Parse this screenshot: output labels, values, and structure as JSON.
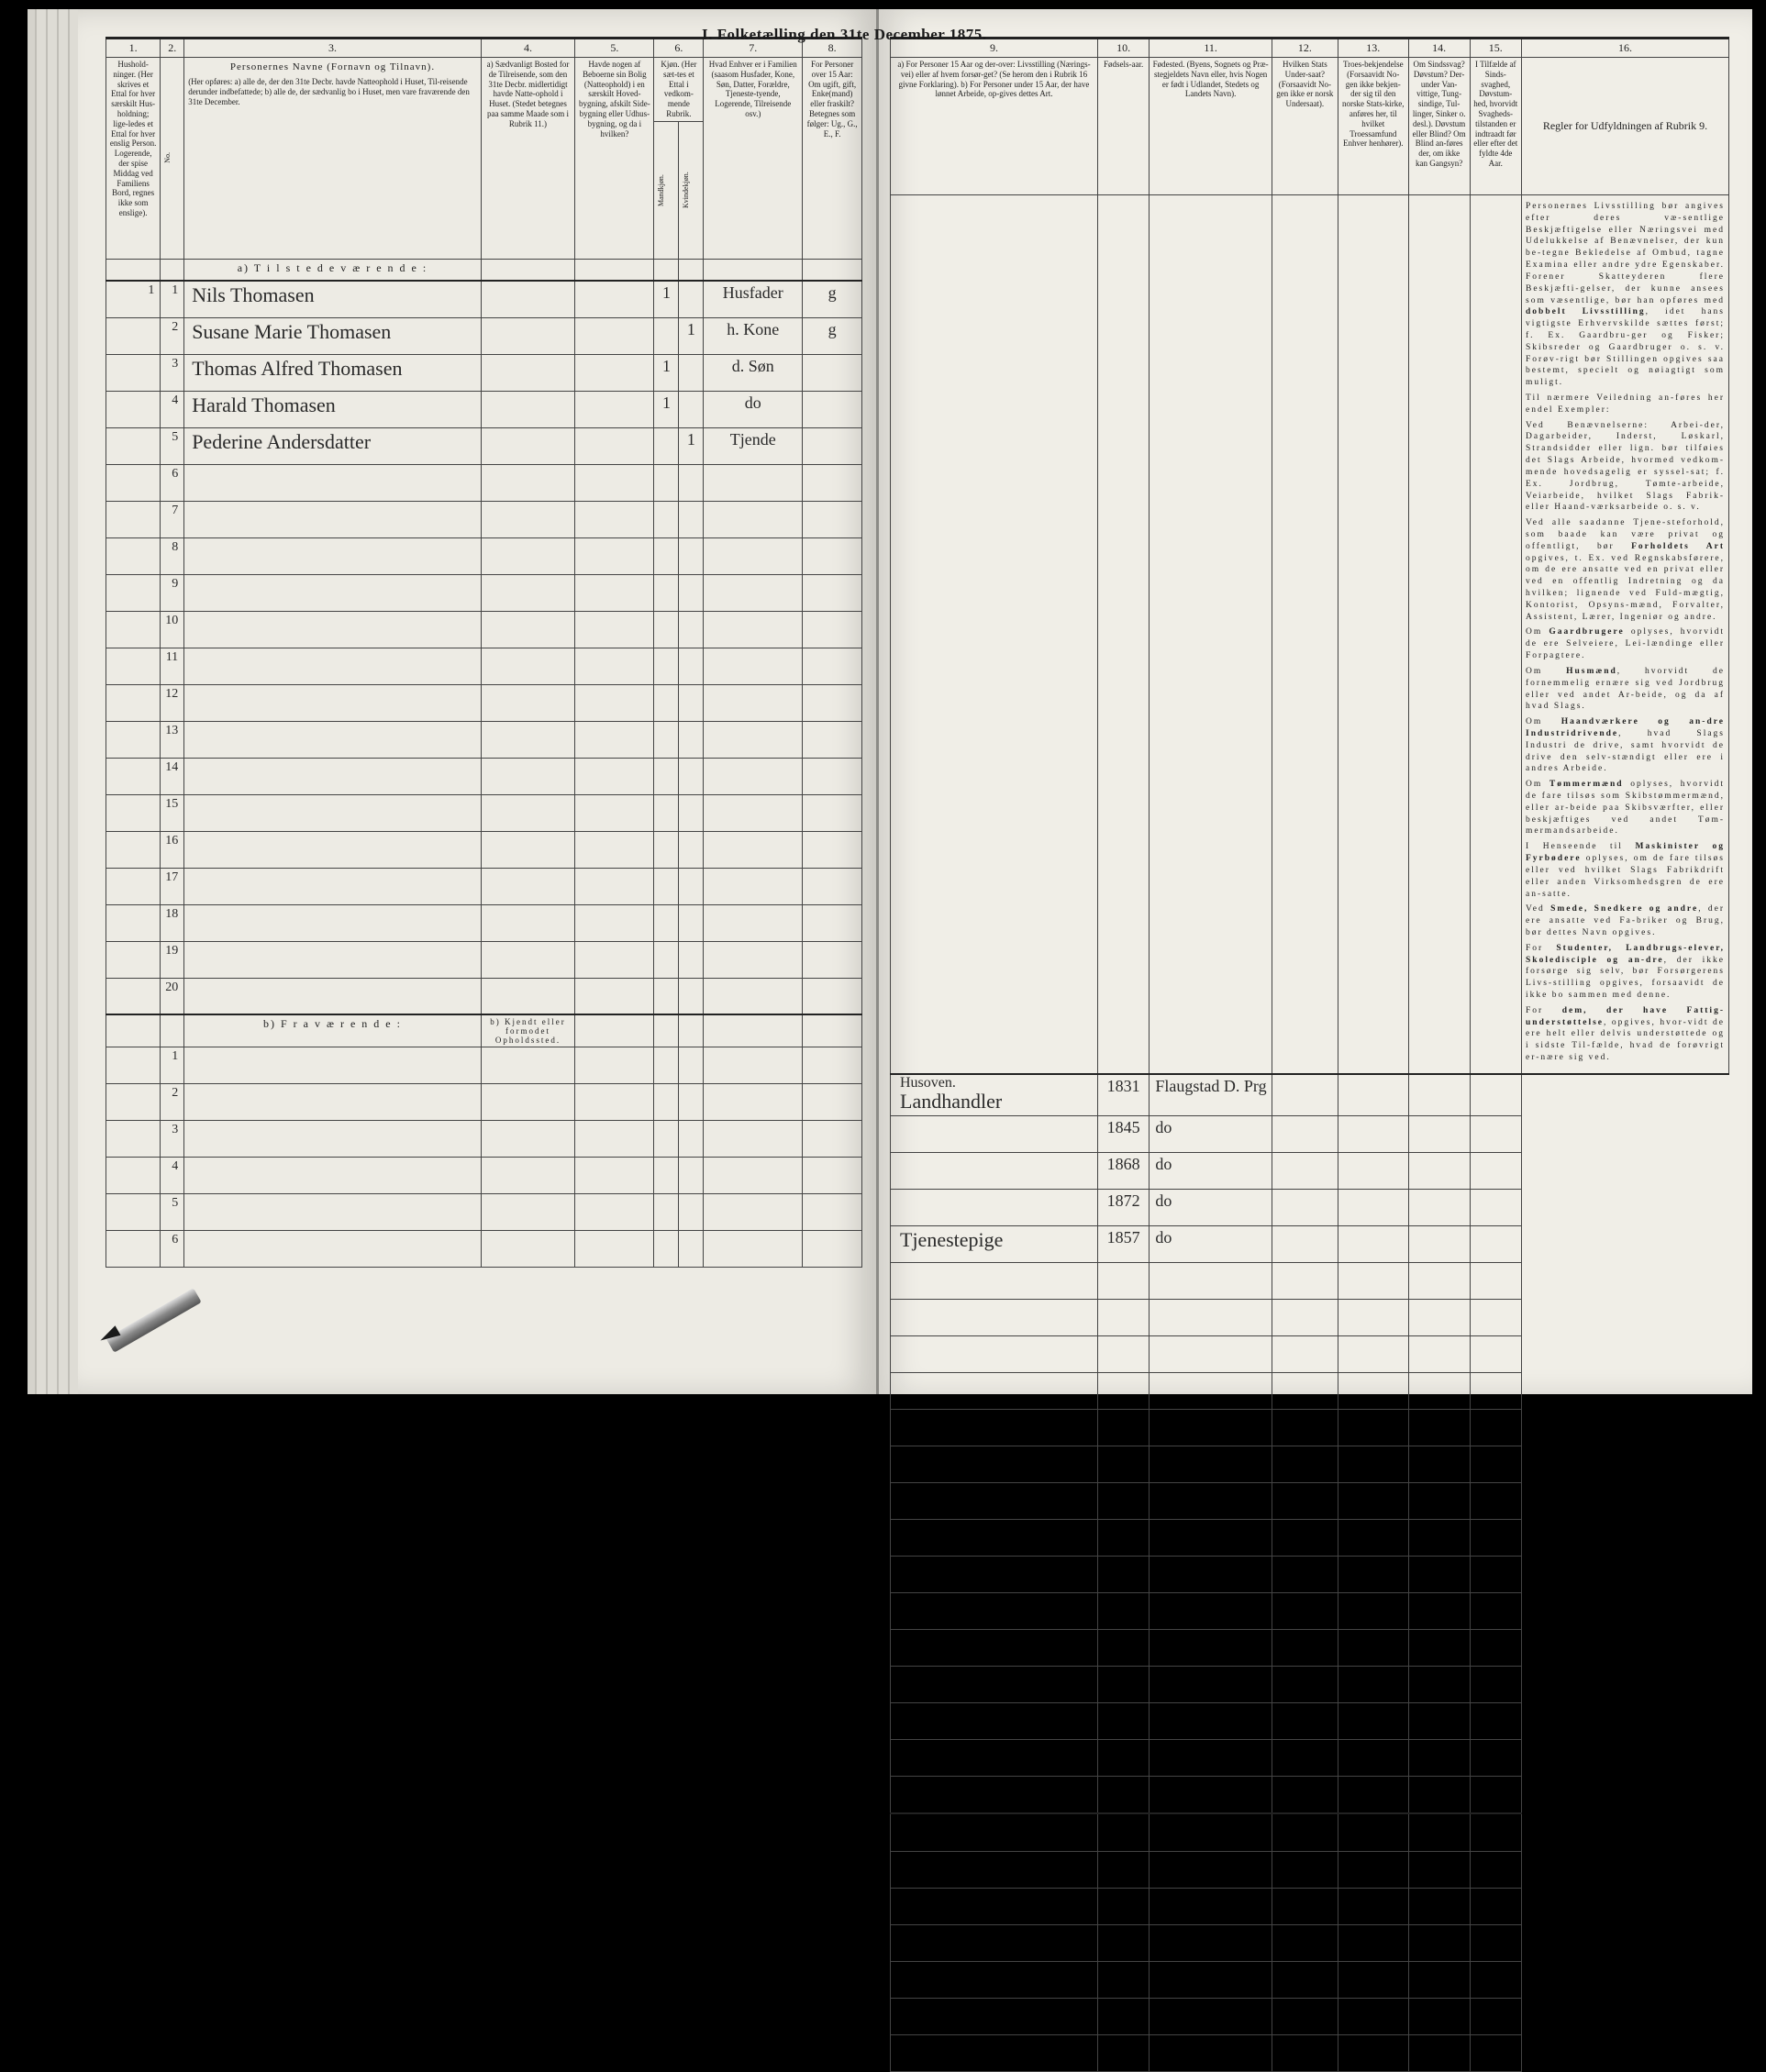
{
  "title": "I.  Folketælling den 31te December 1875.",
  "columns_left": {
    "c1": "1.",
    "c2": "2.",
    "c3": "3.",
    "c4": "4.",
    "c5": "5.",
    "c6": "6.",
    "c7": "7.",
    "c8": "8."
  },
  "columns_right": {
    "c9": "9.",
    "c10": "10.",
    "c11": "11.",
    "c12": "12.",
    "c13": "13.",
    "c14": "14.",
    "c15": "15.",
    "c16": "16."
  },
  "headers_left": {
    "h1": "Hushold-ninger.\n(Her skrives et Ettal for hver særskilt Hus-holdning; lige-ledes et Ettal for hver enslig Person.\nLogerende, der spise Middag ved Familiens Bord, regnes ikke som enslige).",
    "h2": "No.",
    "h3_title": "Personernes Navne (Fornavn og Tilnavn).",
    "h3_body": "(Her opføres:\na) alle de, der den 31te Decbr. havde Natteophold i Huset, Til-reisende derunder indbefattede;\nb) alle de, der sædvanlig bo i Huset, men vare fraværende den 31te December.",
    "h4": "a) Sædvanligt Bosted for de Tilreisende, som den 31te Decbr. midlertidigt havde Natte-ophold i Huset.\n(Stedet betegnes paa samme Maade som i Rubrik 11.)",
    "h5": "Havde nogen af Beboerne sin Bolig (Natteophold) i en særskilt Hoved-bygning, afskilt Side-bygning eller Udhus-bygning, og da i hvilken?",
    "h6": "Kjøn.\n(Her sæt-tes et Ettal i vedkom-mende Rubrik.",
    "h6a": "Mandkjøn.",
    "h6b": "Kvindekjøn.",
    "h7": "Hvad Enhver er i Familien\n(saasom Husfader, Kone, Søn, Datter, Forældre, Tjeneste-tyende, Logerende, Tilreisende osv.)",
    "h8": "For Personer over 15 Aar: Om ugift, gift, Enke(mand) eller fraskilt?\nBetegnes som følger:\nUg., G., E., F."
  },
  "headers_right": {
    "h9": "a) For Personer 15 Aar og der-over: Livsstilling (Nærings-vei) eller af hvem forsør-get? (Se herom den i Rubrik 16 givne Forklaring).\nb) For Personer under 15 Aar, der have lønnet Arbeide, op-gives dettes Art.",
    "h10": "Fødsels-aar.",
    "h11": "Fødested.\n(Byens, Sognets og Præ-stegjeldets Navn eller, hvis Nogen er født i Udlandet, Stedets og Landets Navn).",
    "h12": "Hvilken Stats Under-saat?\n(Forsaavidt No-gen ikke er norsk Undersaat).",
    "h13": "Troes-bekjendelse\n(Forsaavidt No-gen ikke bekjen-der sig til den norske Stats-kirke, anføres her, til hvilket Troessamfund Enhver henhører).",
    "h14": "Om Sindssvag?\nDøvstum? Der-under Van-vittige, Tung-sindige, Tul-linger, Sinker o. desl.). Døvstum eller Blind? Om Blind an-føres der, om ikke kan Gangsyn?",
    "h15": "I Tilfælde af Sinds-svaghed, Døvstum-hed, hvorvidt Svagheds-tilstanden er indtraadt før eller efter det fyldte 4de Aar.",
    "h16_title": "Regler for Udfyldningen af Rubrik 9."
  },
  "section_a": "a)  T i l s t e d e v æ r e n d e :",
  "section_b": "b)  F r a v æ r e n d e :",
  "absent_col4": "b) Kjendt eller formodet Opholdssted.",
  "rows": [
    {
      "no": "1",
      "name": "Nils Thomasen",
      "c6a": "1",
      "c6b": "",
      "rel": "Husfader",
      "civ": "g",
      "occ": "Landhandler",
      "occ2": "Husoven.",
      "year": "1831",
      "place": "Flaugstad D. Prg"
    },
    {
      "no": "2",
      "name": "Susane Marie Thomasen",
      "c6a": "",
      "c6b": "1",
      "rel": "h. Kone",
      "civ": "g",
      "occ": "",
      "occ2": "",
      "year": "1845",
      "place": "do"
    },
    {
      "no": "3",
      "name": "Thomas Alfred Thomasen",
      "c6a": "1",
      "c6b": "",
      "rel": "d. Søn",
      "civ": "",
      "occ": "",
      "occ2": "",
      "year": "1868",
      "place": "do"
    },
    {
      "no": "4",
      "name": "Harald Thomasen",
      "c6a": "1",
      "c6b": "",
      "rel": "do",
      "civ": "",
      "occ": "",
      "occ2": "",
      "year": "1872",
      "place": "do"
    },
    {
      "no": "5",
      "name": "Pederine Andersdatter",
      "c6a": "",
      "c6b": "1",
      "rel": "Tjende",
      "civ": "",
      "occ": "Tjenestepige",
      "occ2": "",
      "year": "1857",
      "place": "do"
    }
  ],
  "empty_rows_a": [
    "6",
    "7",
    "8",
    "9",
    "10",
    "11",
    "12",
    "13",
    "14",
    "15",
    "16",
    "17",
    "18",
    "19",
    "20"
  ],
  "empty_rows_b": [
    "1",
    "2",
    "3",
    "4",
    "5",
    "6"
  ],
  "instructions_title": "",
  "instructions": [
    "Personernes Livsstilling bør angives efter deres væ-sentlige Beskjæftigelse eller Næringsvei med Udelukkelse af Benævnelser, der kun be-tegne Bekledelse af Ombud, tagne Examina eller andre ydre Egenskaber. Forener Skatteyderen flere Beskjæfti-gelser, der kunne ansees som væsentlige, bør han opføres med **dobbelt Livsstilling**, idet hans vigtigste Erhvervskilde sættes først; f. Ex. Gaardbru-ger og Fisker; Skibsreder og Gaardbruger o. s. v. Forøv-rigt bør Stillingen opgives saa bestemt, specielt og nøiagtigt som muligt.",
    "Til nærmere Veiledning an-føres her endel Exempler:",
    "Ved Benævnelserne: Arbei-der, Dagarbeider, Inderst, Løskarl, Strandsidder eller lign. bør tilføies det Slags Arbeide, hvormed vedkom-mende hovedsagelig er syssel-sat; f. Ex. Jordbrug, Tømte-arbeide, Veiarbeide, hvilket Slags Fabrik- eller Haand-værksarbeide o. s. v.",
    "Ved alle saadanne Tjene-steforhold, som baade kan være privat og offentligt, bør **Forholdets Art** opgives, t. Ex. ved Regnskabsførere, om de ere ansatte ved en privat eller ved en offentlig Indretning og da hvilken; lignende ved Fuld-mægtig, Kontorist, Opsyns-mænd, Forvalter, Assistent, Lærer, Ingeniør og andre.",
    "Om **Gaardbrugere** oplyses, hvorvidt de ere Selveiere, Lei-lændinge eller Forpagtere.",
    "Om **Husmænd**, hvorvidt de fornemmelig ernære sig ved Jordbrug eller ved andet Ar-beide, og da af hvad Slags.",
    "Om **Haandværkere og an-dre Industridrivende**, hvad Slags Industri de drive, samt hvorvidt de drive den selv-stændigt eller ere i andres Arbeide.",
    "Om **Tømmermænd** oplyses, hvorvidt de fare tilsøs som Skibstømmermænd, eller ar-beide paa Skibsværfter, eller beskjæftiges ved andet Tøm-mermandsarbeide.",
    "I Henseende til **Maskinister og Fyrbødere** oplyses, om de fare tilsøs eller ved hvilket Slags Fabrikdrift eller anden Virksomhedsgren de ere an-satte.",
    "Ved **Smede, Snedkere og andre**, der ere ansatte ved Fa-briker og Brug, bør dettes Navn opgives.",
    "For **Studenter, Landbrugs-elever, Skoledisciple og an-dre**, der ikke forsørge sig selv, bør Forsørgerens Livs-stilling opgives, forsaavidt de ikke bo sammen med denne.",
    "For **dem, der have Fattig-understøttelse**, opgives, hvor-vidt de ere helt eller delvis understøttede og i sidste Til-fælde, hvad de forøvrigt er-nære sig ved."
  ]
}
